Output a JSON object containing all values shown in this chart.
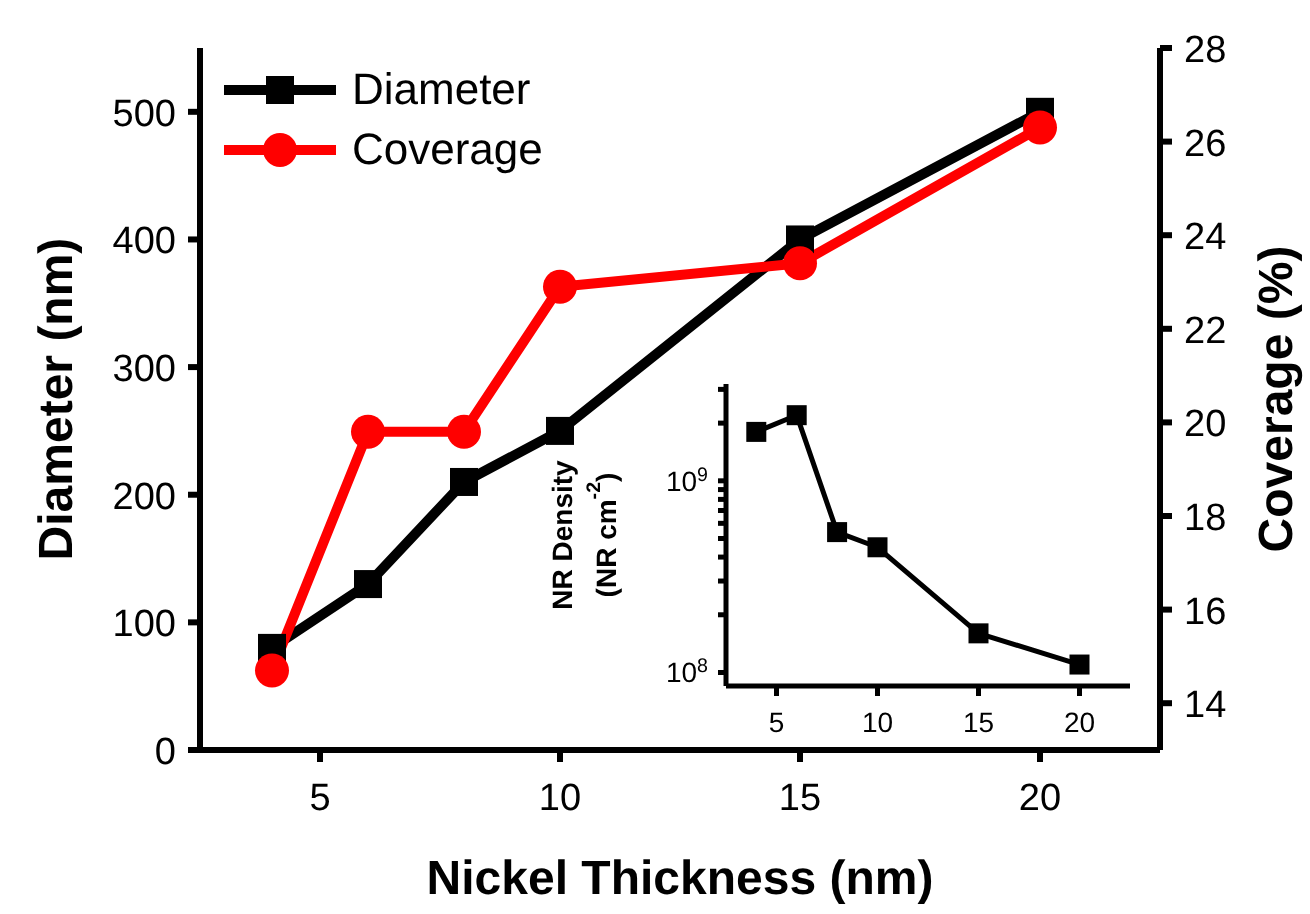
{
  "chart_data": [
    {
      "type": "line",
      "xlabel": "Nickel Thickness (nm)",
      "ylabel": "Diameter (nm)",
      "y2label": "Coverage (%)",
      "x": [
        4,
        6,
        8,
        10,
        15,
        20
      ],
      "xlim": [
        2.5,
        22.5
      ],
      "xticks": [
        5,
        10,
        15,
        20
      ],
      "ylim": [
        0,
        550
      ],
      "yticks": [
        0,
        100,
        200,
        300,
        400,
        500
      ],
      "y2lim": [
        13,
        28
      ],
      "y2ticks": [
        14,
        16,
        18,
        20,
        22,
        24,
        26,
        28
      ],
      "legend": "top left",
      "series": [
        {
          "name": "Diameter",
          "color": "#000000",
          "marker": "square",
          "values": [
            80,
            130,
            210,
            250,
            400,
            500
          ]
        },
        {
          "name": "Coverage",
          "color": "#ff0000",
          "marker": "circle",
          "axis": "y2",
          "values": [
            14.7,
            19.8,
            19.8,
            22.9,
            23.4,
            26.3
          ]
        }
      ]
    },
    {
      "type": "line",
      "ylabel": "NR Density\n(NR cm$^{-2}$)",
      "x": [
        4,
        6,
        8,
        10,
        15,
        20
      ],
      "xlim": [
        2.5,
        22.5
      ],
      "xticks": [
        5,
        10,
        15,
        20
      ],
      "log": "y",
      "ylim": [
        85000000,
        3200000000
      ],
      "marker": "square",
      "yticks": [
        {
          "value": 100000000,
          "label": "10$^{8}$"
        },
        {
          "value": 200000000,
          "label": null
        },
        {
          "value": 300000000,
          "label": null
        },
        {
          "value": 400000000,
          "label": null
        },
        {
          "value": 500000000,
          "label": null
        },
        {
          "value": 600000000,
          "label": null
        },
        {
          "value": 700000000,
          "label": null
        },
        {
          "value": 800000000,
          "label": null
        },
        {
          "value": 900000000,
          "label": null
        },
        {
          "value": 1000000000,
          "label": "10$^{9}$"
        },
        {
          "value": 2000000000,
          "label": null
        },
        {
          "value": 3000000000,
          "label": null
        }
      ],
      "series": [
        {
          "color": "#000000",
          "values": [
            1800000000,
            2200000000,
            540000000,
            450000000,
            160000000,
            110000000
          ]
        }
      ]
    }
  ]
}
